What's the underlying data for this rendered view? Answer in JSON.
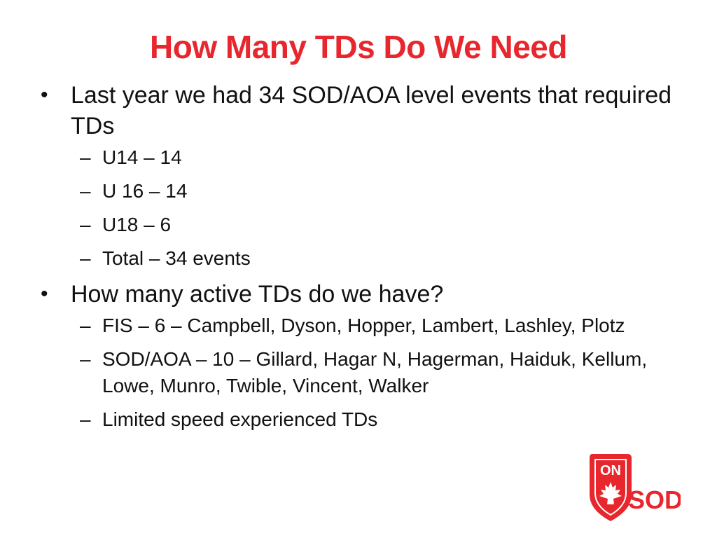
{
  "title": "How Many TDs Do We Need",
  "bullets": [
    {
      "text": "Last year we had 34 SOD/AOA level events that required TDs",
      "subs": [
        "U14 – 14",
        "U 16 – 14",
        "U18 – 6",
        "Total – 34 events"
      ]
    },
    {
      "text": "How many active TDs do we have?",
      "subs": [
        "FIS – 6 – Campbell, Dyson, Hopper, Lambert, Lashley, Plotz",
        "SOD/AOA – 10 – Gillard, Hagar N, Hagerman, Haiduk, Kellum, Lowe, Munro, Twible, Vincent, Walker",
        "Limited speed experienced TDs"
      ]
    }
  ],
  "bullet_glyph": "•",
  "dash_glyph": "–",
  "logo": {
    "top_text": "ON",
    "bottom_text": "SOD",
    "icon": "maple-leaf-icon"
  },
  "colors": {
    "accent": "#e8262d",
    "text": "#111111",
    "background": "#ffffff"
  }
}
